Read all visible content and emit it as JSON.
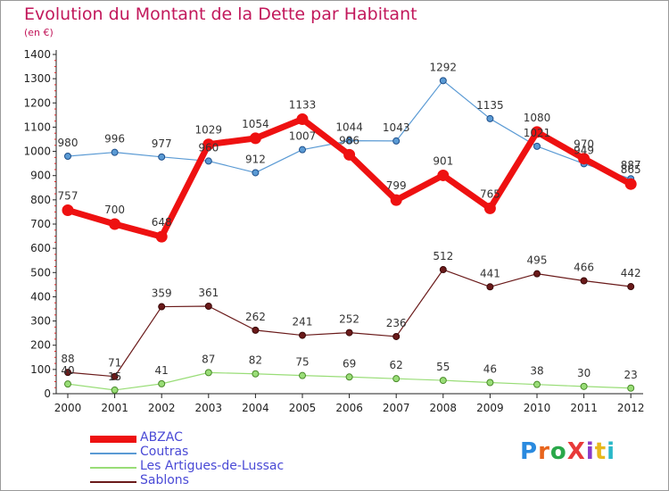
{
  "title": "Evolution du Montant de la Dette par Habitant",
  "subtitle": "(en €)",
  "logo": "ProXiti",
  "chart_data": {
    "type": "line",
    "title": "Evolution du Montant de la Dette par Habitant",
    "ylabel": "(en €)",
    "xlabel": "",
    "x": [
      "2000",
      "2001",
      "2002",
      "2003",
      "2004",
      "2005",
      "2006",
      "2007",
      "2008",
      "2009",
      "2010",
      "2011",
      "2012"
    ],
    "ylim": [
      0,
      1400
    ],
    "yticks": [
      0,
      100,
      200,
      300,
      400,
      500,
      600,
      700,
      800,
      900,
      1000,
      1100,
      1200,
      1300,
      1400
    ],
    "grid": false,
    "legend_position": "bottom",
    "series": [
      {
        "name": "ABZAC",
        "color": "#ee1111",
        "values": [
          757,
          700,
          648,
          1029,
          1054,
          1133,
          986,
          799,
          901,
          765,
          1080,
          970,
          865
        ]
      },
      {
        "name": "Coutras",
        "color": "#5a9ad4",
        "values": [
          980,
          996,
          977,
          960,
          912,
          1007,
          1044,
          1043,
          1292,
          1135,
          1021,
          949,
          887
        ]
      },
      {
        "name": "Les Artigues-de-Lussac",
        "color": "#99dd77",
        "values": [
          40,
          15,
          41,
          87,
          82,
          75,
          69,
          62,
          55,
          46,
          38,
          30,
          23
        ]
      },
      {
        "name": "Sablons",
        "color": "#6a1a1a",
        "values": [
          88,
          71,
          359,
          361,
          262,
          241,
          252,
          236,
          512,
          441,
          495,
          466,
          442
        ]
      }
    ]
  }
}
